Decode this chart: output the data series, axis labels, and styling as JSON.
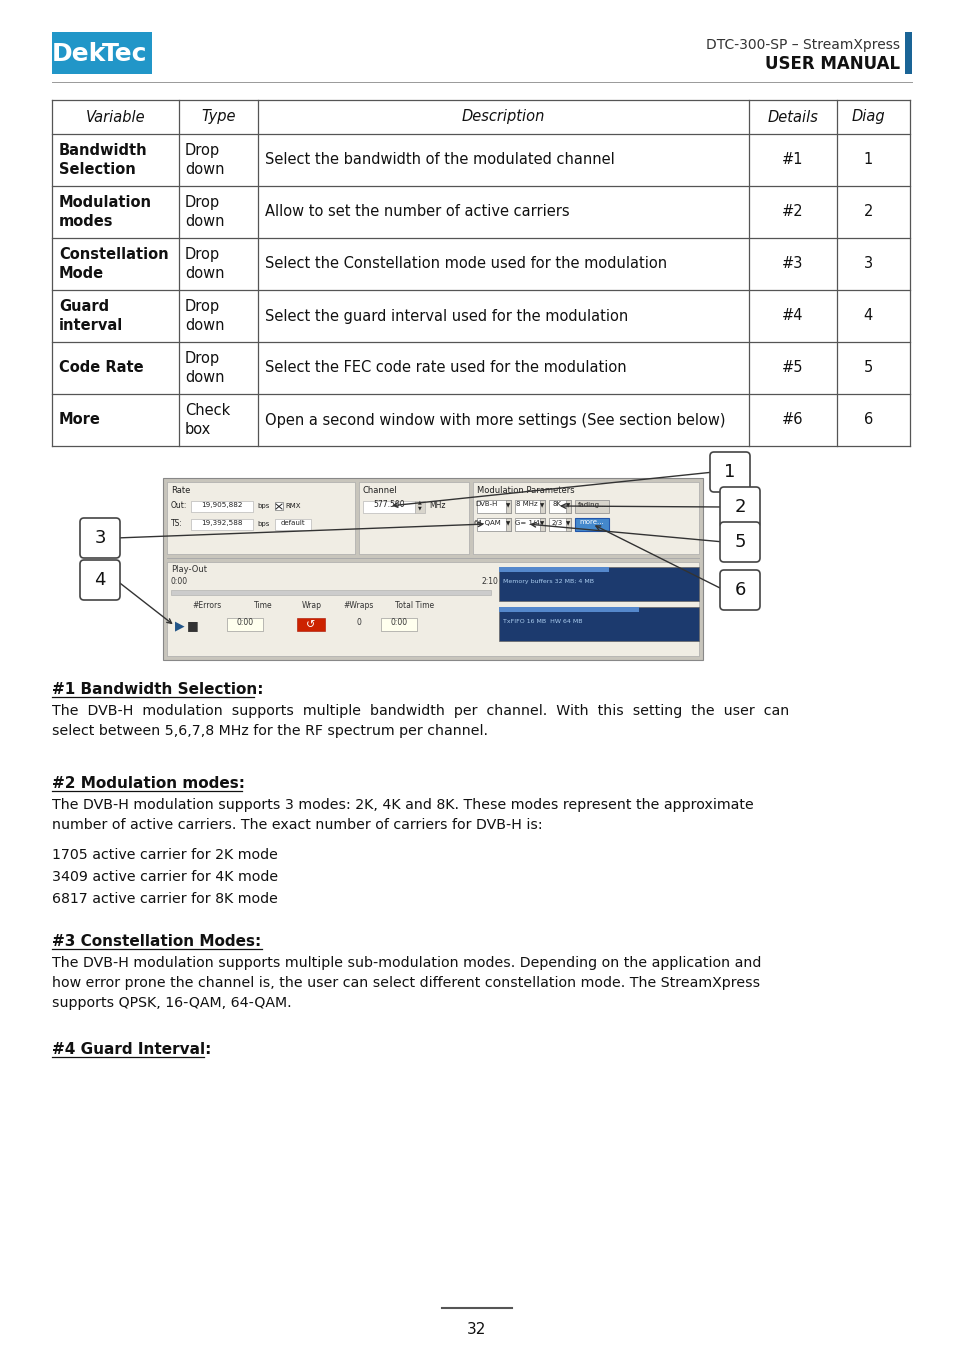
{
  "page_bg": "#ffffff",
  "logo_blue": "#2196c8",
  "header_text1": "DTC-300-SP – StreamXpress",
  "header_text2": "USER MANUAL",
  "header_bar_color": "#1a6496",
  "table_header": [
    "Variable",
    "Type",
    "Description",
    "Details",
    "Diag"
  ],
  "table_rows": [
    [
      "Bandwidth\nSelection",
      "Drop\ndown",
      "Select the bandwidth of the modulated channel",
      "#1",
      "1"
    ],
    [
      "Modulation\nmodes",
      "Drop\ndown",
      "Allow to set the number of active carriers",
      "#2",
      "2"
    ],
    [
      "Constellation\nMode",
      "Drop\ndown",
      "Select the Constellation mode used for the modulation",
      "#3",
      "3"
    ],
    [
      "Guard\ninterval",
      "Drop\ndown",
      "Select the guard interval used for the modulation",
      "#4",
      "4"
    ],
    [
      "Code Rate",
      "Drop\ndown",
      "Select the FEC code rate used for the modulation",
      "#5",
      "5"
    ],
    [
      "More",
      "Check\nbox",
      "Open a second window with more settings (See section below)",
      "#6",
      "6"
    ]
  ],
  "section1_title": "#1 Bandwidth Selection:",
  "section1_body": "The  DVB-H  modulation  supports  multiple  bandwidth  per  channel.  With  this  setting  the  user  can\nselect between 5,6,7,8 MHz for the RF spectrum per channel.",
  "section2_title": "#2 Modulation modes:",
  "section2_body": "The DVB-H modulation supports 3 modes: 2K, 4K and 8K. These modes represent the approximate\nnumber of active carriers. The exact number of carriers for DVB-H is:",
  "section2_bullets": [
    "1705 active carrier for 2K mode",
    "3409 active carrier for 4K mode",
    "6817 active carrier for 8K mode"
  ],
  "section3_title": "#3 Constellation Modes:",
  "section3_body": "The DVB-H modulation supports multiple sub-modulation modes. Depending on the application and\nhow error prone the channel is, the user can select different constellation mode. The StreamXpress\nsupports QPSK, 16-QAM, 64-QAM.",
  "section4_title": "#4 Guard Interval:",
  "page_number": "32"
}
